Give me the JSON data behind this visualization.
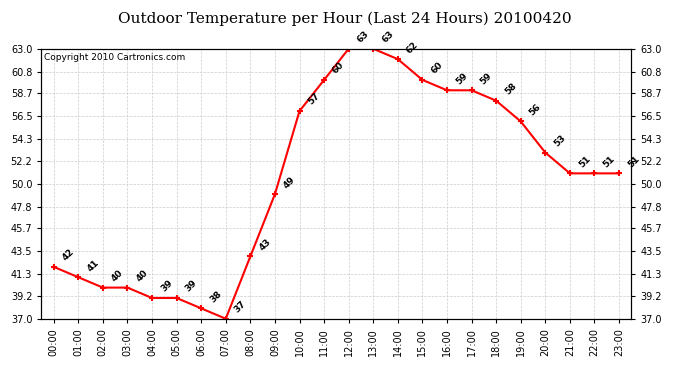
{
  "title": "Outdoor Temperature per Hour (Last 24 Hours) 20100420",
  "copyright": "Copyright 2010 Cartronics.com",
  "hours": [
    "00:00",
    "01:00",
    "02:00",
    "03:00",
    "04:00",
    "05:00",
    "06:00",
    "07:00",
    "08:00",
    "09:00",
    "10:00",
    "11:00",
    "12:00",
    "13:00",
    "14:00",
    "15:00",
    "16:00",
    "17:00",
    "18:00",
    "19:00",
    "20:00",
    "21:00",
    "22:00",
    "23:00"
  ],
  "values": [
    42,
    41,
    40,
    40,
    39,
    39,
    38,
    37,
    43,
    49,
    57,
    60,
    63,
    63,
    62,
    60,
    59,
    59,
    58,
    56,
    53,
    51,
    51,
    51
  ],
  "ylim_min": 37.0,
  "ylim_max": 63.0,
  "yticks": [
    37.0,
    39.2,
    41.3,
    43.5,
    45.7,
    47.8,
    50.0,
    52.2,
    54.3,
    56.5,
    58.7,
    60.8,
    63.0
  ],
  "line_color": "red",
  "marker_color": "red",
  "bg_color": "white",
  "grid_color": "#cccccc",
  "title_fontsize": 11,
  "copyright_fontsize": 6.5,
  "label_fontsize": 6.5,
  "tick_fontsize": 7
}
